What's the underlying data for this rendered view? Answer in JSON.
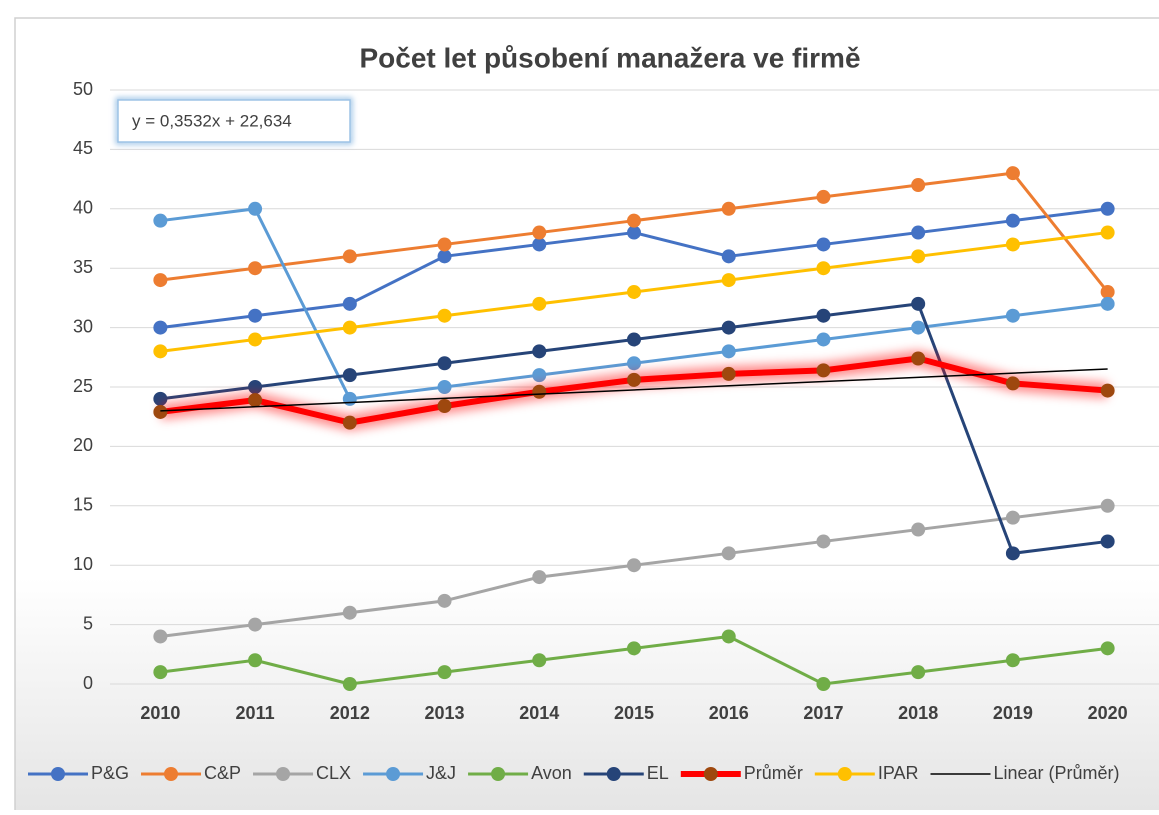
{
  "chart_data": {
    "type": "line",
    "title": "Počet let působení manažera ve firmě",
    "categories": [
      "2010",
      "2011",
      "2012",
      "2013",
      "2014",
      "2015",
      "2016",
      "2017",
      "2018",
      "2019",
      "2020"
    ],
    "series": [
      {
        "name": "P&G",
        "color": "#4472c4",
        "values": [
          30,
          31,
          32,
          36,
          37,
          38,
          36,
          37,
          38,
          39,
          40
        ]
      },
      {
        "name": "C&P",
        "color": "#ed7d31",
        "values": [
          34,
          35,
          36,
          37,
          38,
          39,
          40,
          41,
          42,
          43,
          33
        ]
      },
      {
        "name": "CLX",
        "color": "#a5a5a5",
        "values": [
          4,
          5,
          6,
          7,
          9,
          10,
          11,
          12,
          13,
          14,
          15
        ]
      },
      {
        "name": "J&J",
        "color": "#5b9bd5",
        "values": [
          39,
          40,
          24,
          25,
          26,
          27,
          28,
          29,
          30,
          31,
          32
        ]
      },
      {
        "name": "Avon",
        "color": "#70ad47",
        "values": [
          1,
          2,
          0,
          1,
          2,
          3,
          4,
          0,
          1,
          2,
          3
        ]
      },
      {
        "name": "EL",
        "color": "#264478",
        "values": [
          24,
          25,
          26,
          27,
          28,
          29,
          30,
          31,
          32,
          11,
          12
        ]
      },
      {
        "name": "Průměr",
        "color": "#ff0000",
        "marker_color": "#9e480e",
        "highlight": true,
        "values": [
          22.9,
          23.9,
          22,
          23.4,
          24.6,
          25.6,
          26.1,
          26.4,
          27.4,
          25.3,
          24.7
        ]
      },
      {
        "name": "IPAR",
        "color": "#ffc000",
        "values": [
          28,
          29,
          30,
          31,
          32,
          33,
          34,
          35,
          36,
          37,
          38
        ]
      }
    ],
    "trendline": {
      "name": "Linear (Průměr)",
      "color": "#000000",
      "slope": 0.3532,
      "intercept": 22.634,
      "equation": "y = 0,3532x + 22,634"
    },
    "ylim": [
      0,
      50
    ],
    "yticks": [
      0,
      5,
      10,
      15,
      20,
      25,
      30,
      35,
      40,
      45,
      50
    ],
    "grid": true,
    "legend": "bottom"
  }
}
